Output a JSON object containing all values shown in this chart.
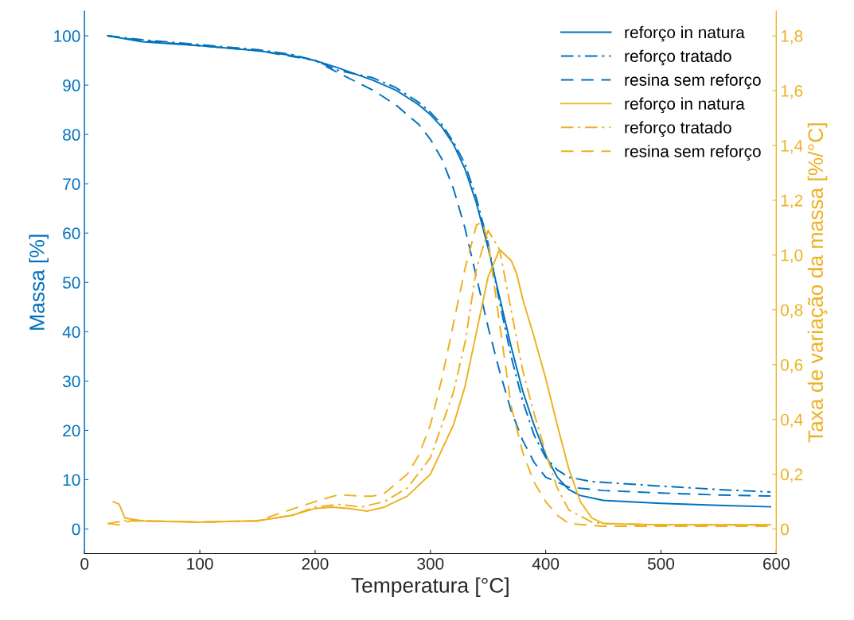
{
  "chart_data": {
    "type": "line",
    "xlabel": "Temperatura [°C]",
    "ylabel": "Massa [%]",
    "y2label": "Taxa de variação da massa [%/°C]",
    "xlim": [
      0,
      600
    ],
    "xticks": [
      0,
      100,
      200,
      300,
      400,
      500,
      600
    ],
    "ylim": [
      -5,
      105
    ],
    "yticks": [
      0,
      10,
      20,
      30,
      40,
      50,
      60,
      70,
      80,
      90,
      100
    ],
    "y2lim": [
      -0.09,
      1.89
    ],
    "y2ticks": [
      {
        "value": 0,
        "label": "0"
      },
      {
        "value": 0.2,
        "label": "0,2"
      },
      {
        "value": 0.4,
        "label": "0,4"
      },
      {
        "value": 0.6,
        "label": "0,6"
      },
      {
        "value": 0.8,
        "label": "0,8"
      },
      {
        "value": 1.0,
        "label": "1,0"
      },
      {
        "value": 1.2,
        "label": "1,2"
      },
      {
        "value": 1.4,
        "label": "1,4"
      },
      {
        "value": 1.6,
        "label": "1,6"
      },
      {
        "value": 1.8,
        "label": "1,8"
      }
    ],
    "grid": false,
    "legend": "top right",
    "series": [
      {
        "name": "reforço in natura",
        "color": "#0072bd",
        "line_style": "solid",
        "x": [
          20,
          50,
          100,
          150,
          180,
          200,
          220,
          250,
          270,
          290,
          300,
          310,
          320,
          330,
          340,
          350,
          360,
          370,
          380,
          390,
          400,
          410,
          420,
          430,
          450,
          500,
          550,
          595
        ],
        "values": [
          100,
          98.8,
          98,
          97,
          96,
          95,
          93.5,
          91,
          89,
          86,
          84,
          81.5,
          78,
          73,
          66,
          57,
          47,
          37,
          28,
          21,
          15,
          10.5,
          8,
          6.8,
          5.8,
          5.2,
          4.8,
          4.5
        ]
      },
      {
        "name": "reforço tratado",
        "color": "#0072bd",
        "line_style": "dashdot",
        "x": [
          20,
          50,
          100,
          150,
          180,
          200,
          220,
          250,
          270,
          290,
          300,
          310,
          320,
          330,
          340,
          350,
          360,
          370,
          380,
          390,
          400,
          410,
          420,
          440,
          500,
          550,
          595
        ],
        "values": [
          100,
          99.2,
          98.2,
          97.2,
          96.2,
          95,
          93,
          91.5,
          89.5,
          86.5,
          84.5,
          82,
          78.5,
          74,
          67,
          58,
          46,
          35,
          26,
          19,
          14.5,
          12,
          10.5,
          9.6,
          8.7,
          8,
          7.5
        ]
      },
      {
        "name": "resina sem reforço",
        "color": "#0072bd",
        "line_style": "dashed",
        "x": [
          20,
          50,
          100,
          150,
          200,
          220,
          250,
          270,
          290,
          300,
          310,
          320,
          330,
          340,
          350,
          360,
          370,
          380,
          390,
          400,
          420,
          450,
          500,
          550,
          595
        ],
        "values": [
          100,
          99,
          98,
          97,
          95,
          92.5,
          89,
          86,
          82,
          79,
          75,
          69,
          61,
          51,
          41,
          32,
          24,
          18,
          13.5,
          10.5,
          8.5,
          7.8,
          7.3,
          6.9,
          6.7
        ]
      },
      {
        "name": "reforço in natura",
        "color": "#edb120",
        "line_style": "solid",
        "axis": "y2",
        "x": [
          25,
          30,
          35,
          50,
          100,
          150,
          180,
          200,
          215,
          230,
          245,
          260,
          280,
          300,
          320,
          330,
          340,
          350,
          360,
          370,
          375,
          380,
          390,
          400,
          410,
          420,
          430,
          440,
          450,
          500,
          595
        ],
        "values": [
          0.1,
          0.09,
          0.04,
          0.03,
          0.025,
          0.03,
          0.05,
          0.075,
          0.08,
          0.075,
          0.065,
          0.08,
          0.12,
          0.2,
          0.38,
          0.52,
          0.72,
          0.92,
          1.02,
          0.98,
          0.93,
          0.84,
          0.7,
          0.55,
          0.38,
          0.22,
          0.1,
          0.04,
          0.02,
          0.015,
          0.015
        ]
      },
      {
        "name": "reforço tratado",
        "color": "#edb120",
        "line_style": "dashdot",
        "axis": "y2",
        "x": [
          20,
          35,
          50,
          100,
          150,
          180,
          200,
          220,
          240,
          260,
          280,
          300,
          320,
          330,
          340,
          350,
          360,
          370,
          380,
          390,
          400,
          410,
          420,
          440,
          450,
          500,
          595
        ],
        "values": [
          0.02,
          0.03,
          0.03,
          0.025,
          0.03,
          0.05,
          0.08,
          0.09,
          0.08,
          0.1,
          0.15,
          0.26,
          0.5,
          0.68,
          0.95,
          1.09,
          1.02,
          0.8,
          0.58,
          0.42,
          0.28,
          0.15,
          0.07,
          0.025,
          0.02,
          0.015,
          0.015
        ]
      },
      {
        "name": "resina sem reforço",
        "color": "#edb120",
        "line_style": "dashed",
        "axis": "y2",
        "x": [
          20,
          30,
          40,
          100,
          150,
          200,
          220,
          240,
          250,
          260,
          280,
          290,
          300,
          310,
          320,
          330,
          340,
          345,
          350,
          360,
          370,
          380,
          390,
          400,
          410,
          420,
          450,
          595
        ],
        "values": [
          0.02,
          0.015,
          0.03,
          0.025,
          0.03,
          0.1,
          0.125,
          0.12,
          0.12,
          0.13,
          0.2,
          0.27,
          0.38,
          0.55,
          0.75,
          0.95,
          1.11,
          1.12,
          1.05,
          0.75,
          0.45,
          0.28,
          0.17,
          0.1,
          0.05,
          0.02,
          0.01,
          0.01
        ]
      }
    ]
  }
}
